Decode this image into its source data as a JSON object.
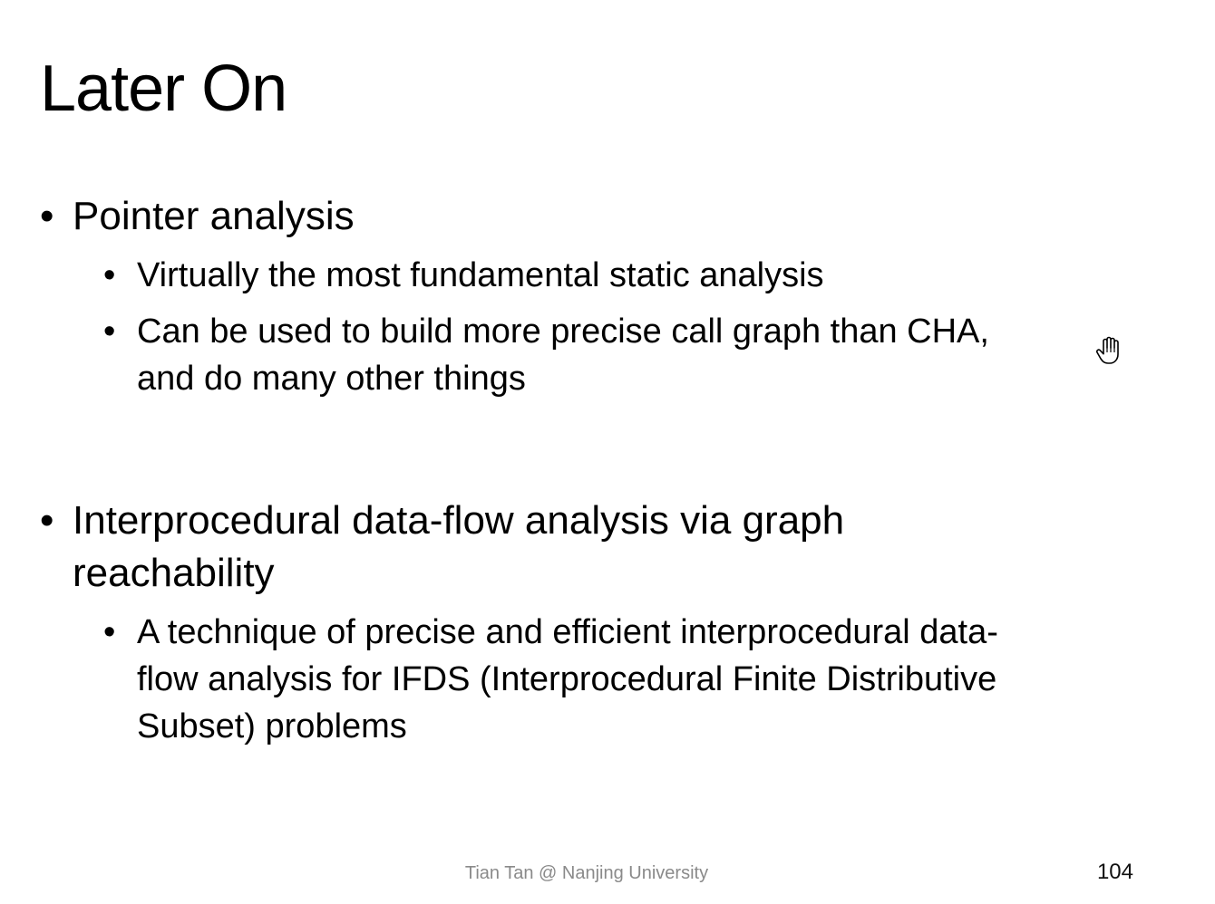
{
  "slide": {
    "title": "Later On",
    "bullets": [
      {
        "marker": "•",
        "text": "Pointer analysis",
        "subitems": [
          {
            "marker": "•",
            "text": "Virtually the most fundamental static analysis"
          },
          {
            "marker": "•",
            "text": "Can be used to build more precise call graph than CHA, and do many other things"
          }
        ]
      },
      {
        "marker": "•",
        "text": "Interprocedural data-flow analysis via graph reachability",
        "subitems": [
          {
            "marker": "•",
            "text": "A technique of precise and efficient interprocedural data-flow analysis for IFDS (Interprocedural Finite Distributive Subset) problems"
          }
        ]
      }
    ],
    "footer": "Tian Tan @ Nanjing University",
    "page_number": "104"
  },
  "cursor": {
    "icon": "hand-pointer-icon"
  }
}
